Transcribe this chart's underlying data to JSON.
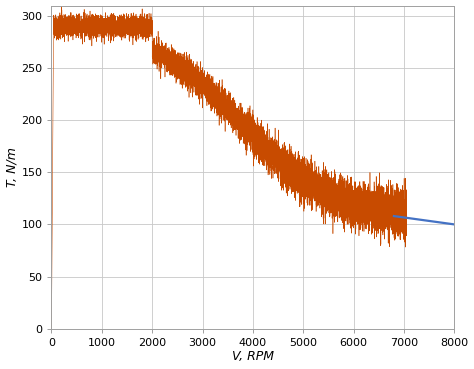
{
  "title": "",
  "xlabel": "V, RPM",
  "ylabel": "T, N/m",
  "xlim": [
    0,
    8000
  ],
  "ylim": [
    0,
    310
  ],
  "xticks": [
    0,
    1000,
    2000,
    3000,
    4000,
    5000,
    6000,
    7000,
    8000
  ],
  "yticks": [
    0,
    50,
    100,
    150,
    200,
    250,
    300
  ],
  "orange_color": "#c84b00",
  "blue_color": "#4472c4",
  "bg_color": "#ffffff",
  "flat_torque": 290,
  "base_speed": 2000,
  "max_speed": 7050,
  "end_torque": 105,
  "noise_flat": 5,
  "noise_drop_start": 6,
  "noise_drop_end": 12,
  "setpoint_start_speed": 6800,
  "setpoint_start_torque": 108,
  "setpoint_end_speed": 8000,
  "setpoint_end_torque": 100,
  "grid_color": "#c8c8c8",
  "spine_color": "#a0a0a0"
}
